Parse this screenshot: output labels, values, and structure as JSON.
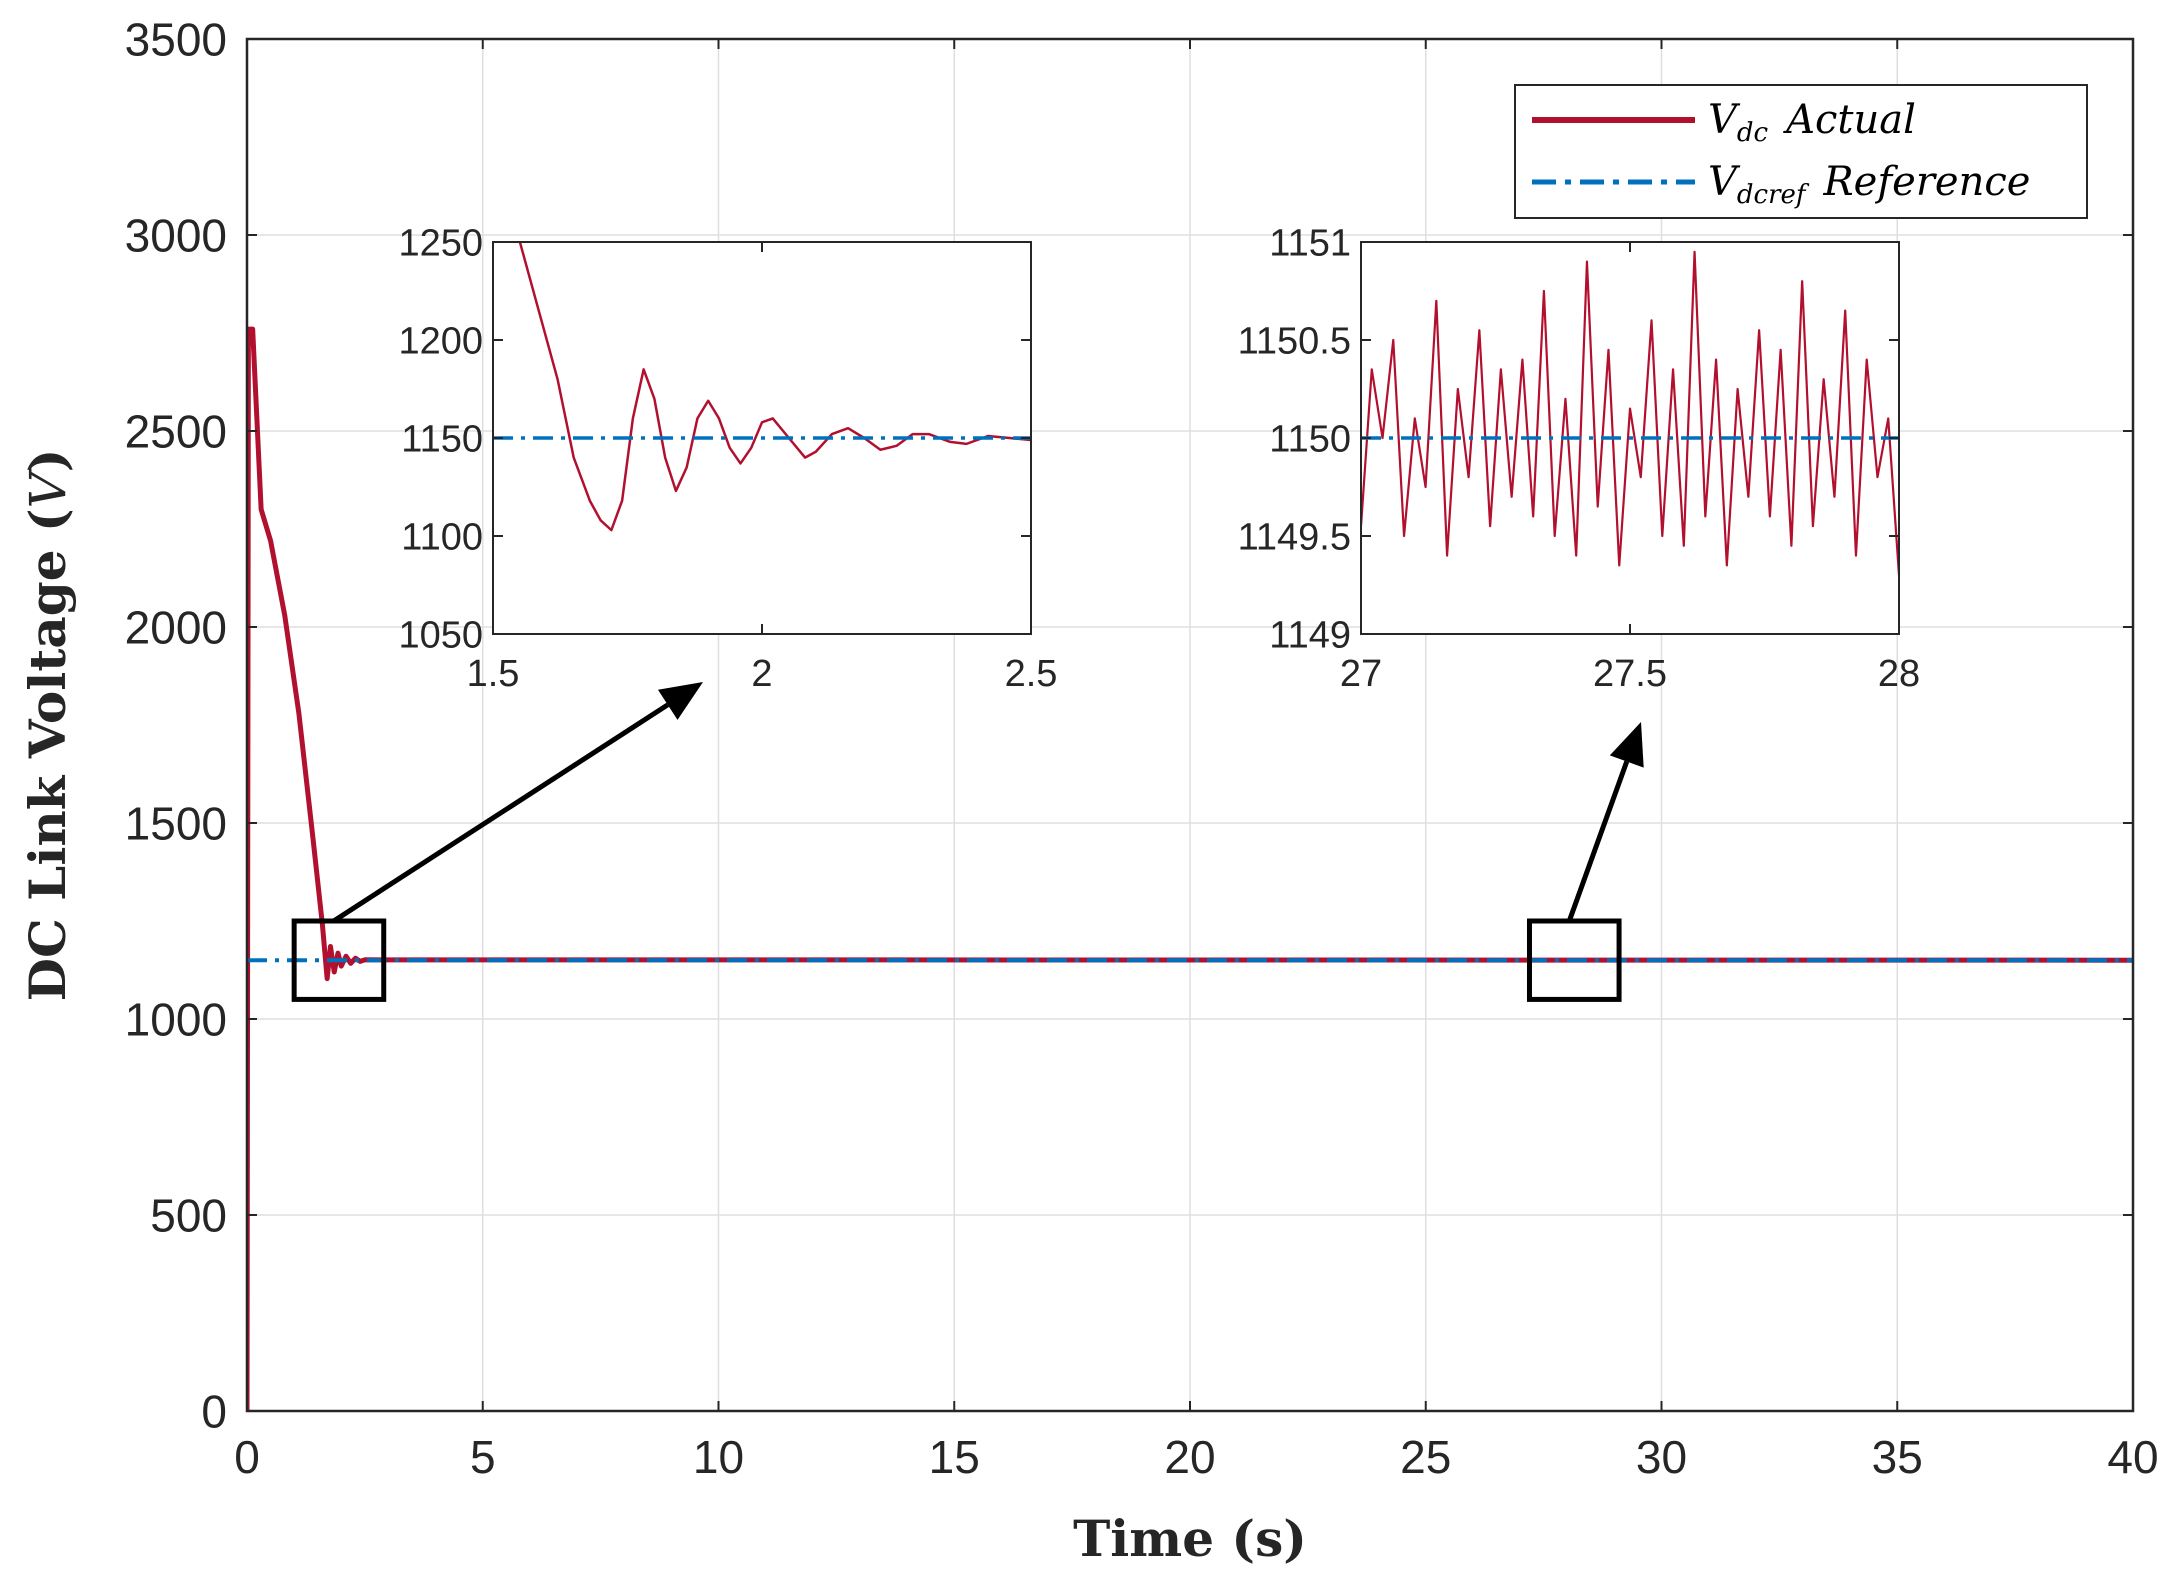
{
  "chart_data": [
    {
      "id": "main",
      "type": "line",
      "xlabel": "Time (s)",
      "ylabel_prefix": "DC Link Voltage (",
      "ylabel_var": "V",
      "ylabel_suffix": ")",
      "xlim": [
        0,
        40
      ],
      "ylim": [
        0,
        3500
      ],
      "xticks": [
        0,
        5,
        10,
        15,
        20,
        25,
        30,
        35,
        40
      ],
      "yticks": [
        0,
        500,
        1000,
        1500,
        2000,
        2500,
        3000,
        3500
      ],
      "grid": true,
      "legend": {
        "placement": "top-right",
        "entries": [
          {
            "base": "V",
            "sub": "dc",
            "text": "Actual",
            "series": "Vdc"
          },
          {
            "base": "V",
            "sub": "dcref",
            "text": "Reference",
            "series": "Vdcref"
          }
        ]
      },
      "series": [
        {
          "name": "Vdc Actual",
          "color": "#b2102f",
          "style": "solid",
          "points": [
            [
              0,
              0
            ],
            [
              0.03,
              2760
            ],
            [
              0.12,
              2760
            ],
            [
              0.3,
              2300
            ],
            [
              0.5,
              2220
            ],
            [
              0.8,
              2030
            ],
            [
              1.1,
              1780
            ],
            [
              1.4,
              1460
            ],
            [
              1.6,
              1240
            ],
            [
              1.7,
              1103
            ],
            [
              1.77,
              1185
            ],
            [
              1.85,
              1120
            ],
            [
              1.93,
              1168
            ],
            [
              2.0,
              1135
            ],
            [
              2.1,
              1160
            ],
            [
              2.2,
              1142
            ],
            [
              2.3,
              1155
            ],
            [
              2.4,
              1147
            ],
            [
              2.5,
              1151
            ],
            [
              40,
              1150
            ]
          ]
        },
        {
          "name": "Vdcref Reference",
          "color": "#0072bd",
          "style": "dashdot",
          "points": [
            [
              0,
              1150
            ],
            [
              40,
              1150
            ]
          ]
        }
      ],
      "annotations": [
        {
          "type": "zoom-box",
          "x": [
            1.0,
            2.9
          ],
          "y": [
            1050,
            1250
          ],
          "target": "inset-1"
        },
        {
          "type": "zoom-box",
          "x": [
            27.2,
            29.1
          ],
          "y": [
            1050,
            1250
          ],
          "target": "inset-2"
        }
      ]
    },
    {
      "id": "inset-1",
      "type": "line",
      "xlim": [
        1.5,
        2.5
      ],
      "ylim": [
        1050,
        1250
      ],
      "xticks": [
        1.5,
        2,
        2.5
      ],
      "yticks": [
        1050,
        1100,
        1150,
        1200,
        1250
      ],
      "grid": false,
      "series": [
        {
          "name": "Vdc Actual",
          "color": "#b2102f",
          "style": "solid",
          "points": [
            [
              1.55,
              1250
            ],
            [
              1.58,
              1220
            ],
            [
              1.62,
              1180
            ],
            [
              1.65,
              1140
            ],
            [
              1.68,
              1118
            ],
            [
              1.7,
              1108
            ],
            [
              1.72,
              1103
            ],
            [
              1.74,
              1118
            ],
            [
              1.76,
              1160
            ],
            [
              1.78,
              1185
            ],
            [
              1.8,
              1170
            ],
            [
              1.82,
              1140
            ],
            [
              1.84,
              1123
            ],
            [
              1.86,
              1135
            ],
            [
              1.88,
              1160
            ],
            [
              1.9,
              1169
            ],
            [
              1.92,
              1160
            ],
            [
              1.94,
              1145
            ],
            [
              1.96,
              1137
            ],
            [
              1.98,
              1145
            ],
            [
              2.0,
              1158
            ],
            [
              2.02,
              1160
            ],
            [
              2.05,
              1150
            ],
            [
              2.08,
              1140
            ],
            [
              2.1,
              1143
            ],
            [
              2.13,
              1152
            ],
            [
              2.16,
              1155
            ],
            [
              2.19,
              1150
            ],
            [
              2.22,
              1144
            ],
            [
              2.25,
              1146
            ],
            [
              2.28,
              1152
            ],
            [
              2.31,
              1152
            ],
            [
              2.35,
              1148
            ],
            [
              2.38,
              1147
            ],
            [
              2.42,
              1151
            ],
            [
              2.46,
              1150
            ],
            [
              2.5,
              1149
            ]
          ]
        },
        {
          "name": "Vdcref Reference",
          "color": "#0072bd",
          "style": "dashdot",
          "points": [
            [
              1.5,
              1150
            ],
            [
              2.5,
              1150
            ]
          ]
        }
      ]
    },
    {
      "id": "inset-2",
      "type": "line",
      "xlim": [
        27,
        28
      ],
      "ylim": [
        1149,
        1151
      ],
      "xticks": [
        27,
        27.5,
        28
      ],
      "xtick_labels": [
        "27",
        "27.5",
        "28"
      ],
      "yticks": [
        1149,
        1149.5,
        1150,
        1150.5,
        1151
      ],
      "ytick_labels": [
        "1149",
        "1149.5",
        "1150",
        "1150.5",
        "1151"
      ],
      "grid": false,
      "series": [
        {
          "name": "Vdc Actual (noisy, approx. 1149.3 to 1150.95)",
          "color": "#b2102f",
          "style": "solid",
          "points": [
            [
              27.0,
              1149.55
            ],
            [
              27.02,
              1150.35
            ],
            [
              27.04,
              1150.0
            ],
            [
              27.06,
              1150.5
            ],
            [
              27.08,
              1149.5
            ],
            [
              27.1,
              1150.1
            ],
            [
              27.12,
              1149.75
            ],
            [
              27.14,
              1150.7
            ],
            [
              27.16,
              1149.4
            ],
            [
              27.18,
              1150.25
            ],
            [
              27.2,
              1149.8
            ],
            [
              27.22,
              1150.55
            ],
            [
              27.24,
              1149.55
            ],
            [
              27.26,
              1150.35
            ],
            [
              27.28,
              1149.7
            ],
            [
              27.3,
              1150.4
            ],
            [
              27.32,
              1149.6
            ],
            [
              27.34,
              1150.75
            ],
            [
              27.36,
              1149.5
            ],
            [
              27.38,
              1150.2
            ],
            [
              27.4,
              1149.4
            ],
            [
              27.42,
              1150.9
            ],
            [
              27.44,
              1149.65
            ],
            [
              27.46,
              1150.45
            ],
            [
              27.48,
              1149.35
            ],
            [
              27.5,
              1150.15
            ],
            [
              27.52,
              1149.8
            ],
            [
              27.54,
              1150.6
            ],
            [
              27.56,
              1149.5
            ],
            [
              27.58,
              1150.35
            ],
            [
              27.6,
              1149.45
            ],
            [
              27.62,
              1150.95
            ],
            [
              27.64,
              1149.6
            ],
            [
              27.66,
              1150.4
            ],
            [
              27.68,
              1149.35
            ],
            [
              27.7,
              1150.25
            ],
            [
              27.72,
              1149.7
            ],
            [
              27.74,
              1150.55
            ],
            [
              27.76,
              1149.6
            ],
            [
              27.78,
              1150.45
            ],
            [
              27.8,
              1149.45
            ],
            [
              27.82,
              1150.8
            ],
            [
              27.84,
              1149.55
            ],
            [
              27.86,
              1150.3
            ],
            [
              27.88,
              1149.7
            ],
            [
              27.9,
              1150.65
            ],
            [
              27.92,
              1149.4
            ],
            [
              27.94,
              1150.4
            ],
            [
              27.96,
              1149.8
            ],
            [
              27.98,
              1150.1
            ],
            [
              28.0,
              1149.3
            ]
          ]
        },
        {
          "name": "Vdcref Reference",
          "color": "#0072bd",
          "style": "dashdot",
          "points": [
            [
              27,
              1150
            ],
            [
              28,
              1150
            ]
          ]
        }
      ]
    }
  ]
}
